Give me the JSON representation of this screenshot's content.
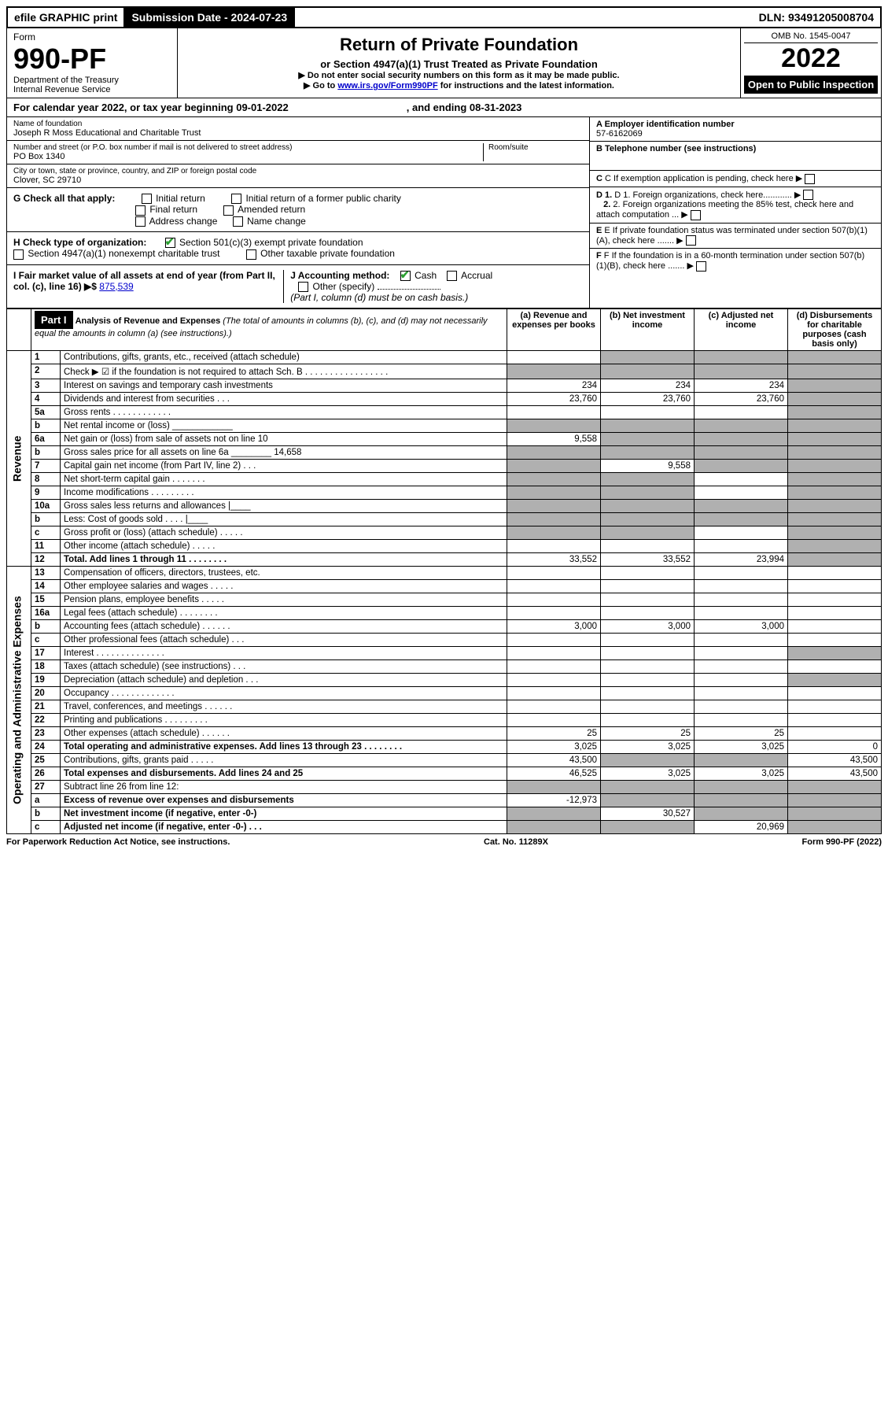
{
  "top_bar": {
    "efile": "efile GRAPHIC print",
    "submission_label": "Submission Date - 2024-07-23",
    "dln": "DLN: 93491205008704"
  },
  "header": {
    "form_label": "Form",
    "form_number": "990-PF",
    "dept1": "Department of the Treasury",
    "dept2": "Internal Revenue Service",
    "title": "Return of Private Foundation",
    "subtitle": "or Section 4947(a)(1) Trust Treated as Private Foundation",
    "note1": "▶ Do not enter social security numbers on this form as it may be made public.",
    "note2_pre": "▶ Go to ",
    "note2_link": "www.irs.gov/Form990PF",
    "note2_post": " for instructions and the latest information.",
    "omb": "OMB No. 1545-0047",
    "year": "2022",
    "inspection": "Open to Public Inspection"
  },
  "cal_year": {
    "pre": "For calendar year 2022, or tax year beginning 09-01-2022",
    "mid": ", and ending 08-31-2023"
  },
  "foundation": {
    "name_label": "Name of foundation",
    "name": "Joseph R Moss Educational and Charitable Trust",
    "addr_label": "Number and street (or P.O. box number if mail is not delivered to street address)",
    "addr": "PO Box 1340",
    "room_label": "Room/suite",
    "city_label": "City or town, state or province, country, and ZIP or foreign postal code",
    "city": "Clover, SC  29710"
  },
  "right_info": {
    "a_label": "A Employer identification number",
    "a_val": "57-6162069",
    "b_label": "B Telephone number (see instructions)",
    "c_label": "C If exemption application is pending, check here",
    "d1_label": "D 1. Foreign organizations, check here............",
    "d2_label": "2. Foreign organizations meeting the 85% test, check here and attach computation ...",
    "e_label": "E If private foundation status was terminated under section 507(b)(1)(A), check here .......",
    "f_label": "F If the foundation is in a 60-month termination under section 507(b)(1)(B), check here ......."
  },
  "g": {
    "label": "G Check all that apply:",
    "opts": [
      "Initial return",
      "Initial return of a former public charity",
      "Final return",
      "Amended return",
      "Address change",
      "Name change"
    ]
  },
  "h": {
    "label": "H Check type of organization:",
    "opt1": "Section 501(c)(3) exempt private foundation",
    "opt2": "Section 4947(a)(1) nonexempt charitable trust",
    "opt3": "Other taxable private foundation"
  },
  "i": {
    "label": "I Fair market value of all assets at end of year (from Part II, col. (c), line 16)",
    "arrow": "▶$",
    "value": "875,539"
  },
  "j": {
    "label": "J Accounting method:",
    "cash": "Cash",
    "accrual": "Accrual",
    "other": "Other (specify)",
    "note": "(Part I, column (d) must be on cash basis.)"
  },
  "part1": {
    "label": "Part I",
    "title": "Analysis of Revenue and Expenses",
    "title_note": "(The total of amounts in columns (b), (c), and (d) may not necessarily equal the amounts in column (a) (see instructions).)",
    "cols": {
      "a": "(a) Revenue and expenses per books",
      "b": "(b) Net investment income",
      "c": "(c) Adjusted net income",
      "d": "(d) Disbursements for charitable purposes (cash basis only)"
    }
  },
  "side_labels": {
    "revenue": "Revenue",
    "expenses": "Operating and Administrative Expenses"
  },
  "rows": [
    {
      "n": "1",
      "d": "Contributions, gifts, grants, etc., received (attach schedule)",
      "a": "",
      "b": "shade",
      "c": "shade",
      "dd": "shade"
    },
    {
      "n": "2",
      "d": "Check ▶ ☑ if the foundation is not required to attach Sch. B   . . . . . . . . . . . . . . . . .",
      "a": "shade",
      "b": "shade",
      "c": "shade",
      "dd": "shade"
    },
    {
      "n": "3",
      "d": "Interest on savings and temporary cash investments",
      "a": "234",
      "b": "234",
      "c": "234",
      "dd": "shade"
    },
    {
      "n": "4",
      "d": "Dividends and interest from securities   . . .",
      "a": "23,760",
      "b": "23,760",
      "c": "23,760",
      "dd": "shade"
    },
    {
      "n": "5a",
      "d": "Gross rents   . . . . . . . . . . . .",
      "a": "",
      "b": "",
      "c": "",
      "dd": "shade"
    },
    {
      "n": "b",
      "d": "Net rental income or (loss) ____________",
      "a": "shade",
      "b": "shade",
      "c": "shade",
      "dd": "shade"
    },
    {
      "n": "6a",
      "d": "Net gain or (loss) from sale of assets not on line 10",
      "a": "9,558",
      "b": "shade",
      "c": "shade",
      "dd": "shade"
    },
    {
      "n": "b",
      "d": "Gross sales price for all assets on line 6a ________ 14,658",
      "a": "shade",
      "b": "shade",
      "c": "shade",
      "dd": "shade"
    },
    {
      "n": "7",
      "d": "Capital gain net income (from Part IV, line 2)  . . .",
      "a": "shade",
      "b": "9,558",
      "c": "shade",
      "dd": "shade"
    },
    {
      "n": "8",
      "d": "Net short-term capital gain  . . . . . . .",
      "a": "shade",
      "b": "shade",
      "c": "",
      "dd": "shade"
    },
    {
      "n": "9",
      "d": "Income modifications  . . . . . . . . .",
      "a": "shade",
      "b": "shade",
      "c": "",
      "dd": "shade"
    },
    {
      "n": "10a",
      "d": "Gross sales less returns and allowances  |____",
      "a": "shade",
      "b": "shade",
      "c": "shade",
      "dd": "shade"
    },
    {
      "n": "b",
      "d": "Less: Cost of goods sold   . . . .  |____",
      "a": "shade",
      "b": "shade",
      "c": "shade",
      "dd": "shade"
    },
    {
      "n": "c",
      "d": "Gross profit or (loss) (attach schedule)  . . . . .",
      "a": "shade",
      "b": "shade",
      "c": "",
      "dd": "shade"
    },
    {
      "n": "11",
      "d": "Other income (attach schedule)   . . . . .",
      "a": "",
      "b": "",
      "c": "",
      "dd": "shade"
    },
    {
      "n": "12",
      "d": "Total. Add lines 1 through 11  . . . . . . . .",
      "bold": true,
      "a": "33,552",
      "b": "33,552",
      "c": "23,994",
      "dd": "shade"
    },
    {
      "n": "13",
      "d": "Compensation of officers, directors, trustees, etc.",
      "a": "",
      "b": "",
      "c": "",
      "dd": ""
    },
    {
      "n": "14",
      "d": "Other employee salaries and wages  . . . . .",
      "a": "",
      "b": "",
      "c": "",
      "dd": ""
    },
    {
      "n": "15",
      "d": "Pension plans, employee benefits  . . . . .",
      "a": "",
      "b": "",
      "c": "",
      "dd": ""
    },
    {
      "n": "16a",
      "d": "Legal fees (attach schedule) . . . . . . . .",
      "a": "",
      "b": "",
      "c": "",
      "dd": ""
    },
    {
      "n": "b",
      "d": "Accounting fees (attach schedule)  . . . . . .",
      "a": "3,000",
      "b": "3,000",
      "c": "3,000",
      "dd": ""
    },
    {
      "n": "c",
      "d": "Other professional fees (attach schedule)   . . .",
      "a": "",
      "b": "",
      "c": "",
      "dd": ""
    },
    {
      "n": "17",
      "d": "Interest . . . . . . . . . . . . . .",
      "a": "",
      "b": "",
      "c": "",
      "dd": "shade"
    },
    {
      "n": "18",
      "d": "Taxes (attach schedule) (see instructions)   . . .",
      "a": "",
      "b": "",
      "c": "",
      "dd": ""
    },
    {
      "n": "19",
      "d": "Depreciation (attach schedule) and depletion  . . .",
      "a": "",
      "b": "",
      "c": "",
      "dd": "shade"
    },
    {
      "n": "20",
      "d": "Occupancy . . . . . . . . . . . . .",
      "a": "",
      "b": "",
      "c": "",
      "dd": ""
    },
    {
      "n": "21",
      "d": "Travel, conferences, and meetings . . . . . .",
      "a": "",
      "b": "",
      "c": "",
      "dd": ""
    },
    {
      "n": "22",
      "d": "Printing and publications . . . . . . . . .",
      "a": "",
      "b": "",
      "c": "",
      "dd": ""
    },
    {
      "n": "23",
      "d": "Other expenses (attach schedule) . . . . . .",
      "a": "25",
      "b": "25",
      "c": "25",
      "dd": ""
    },
    {
      "n": "24",
      "d": "Total operating and administrative expenses. Add lines 13 through 23  . . . . . . . .",
      "bold": true,
      "a": "3,025",
      "b": "3,025",
      "c": "3,025",
      "dd": "0"
    },
    {
      "n": "25",
      "d": "Contributions, gifts, grants paid   . . . . .",
      "a": "43,500",
      "b": "shade",
      "c": "shade",
      "dd": "43,500"
    },
    {
      "n": "26",
      "d": "Total expenses and disbursements. Add lines 24 and 25",
      "bold": true,
      "a": "46,525",
      "b": "3,025",
      "c": "3,025",
      "dd": "43,500"
    },
    {
      "n": "27",
      "d": "Subtract line 26 from line 12:",
      "a": "shade",
      "b": "shade",
      "c": "shade",
      "dd": "shade"
    },
    {
      "n": "a",
      "d": "Excess of revenue over expenses and disbursements",
      "bold": true,
      "a": "-12,973",
      "b": "shade",
      "c": "shade",
      "dd": "shade"
    },
    {
      "n": "b",
      "d": "Net investment income (if negative, enter -0-)",
      "bold": true,
      "a": "shade",
      "b": "30,527",
      "c": "shade",
      "dd": "shade"
    },
    {
      "n": "c",
      "d": "Adjusted net income (if negative, enter -0-)  . . .",
      "bold": true,
      "a": "shade",
      "b": "shade",
      "c": "20,969",
      "dd": "shade"
    }
  ],
  "footer": {
    "left": "For Paperwork Reduction Act Notice, see instructions.",
    "mid": "Cat. No. 11289X",
    "right": "Form 990-PF (2022)"
  },
  "colors": {
    "shade": "#b0b0b0",
    "link": "#0000cc",
    "check": "#2aa030"
  }
}
